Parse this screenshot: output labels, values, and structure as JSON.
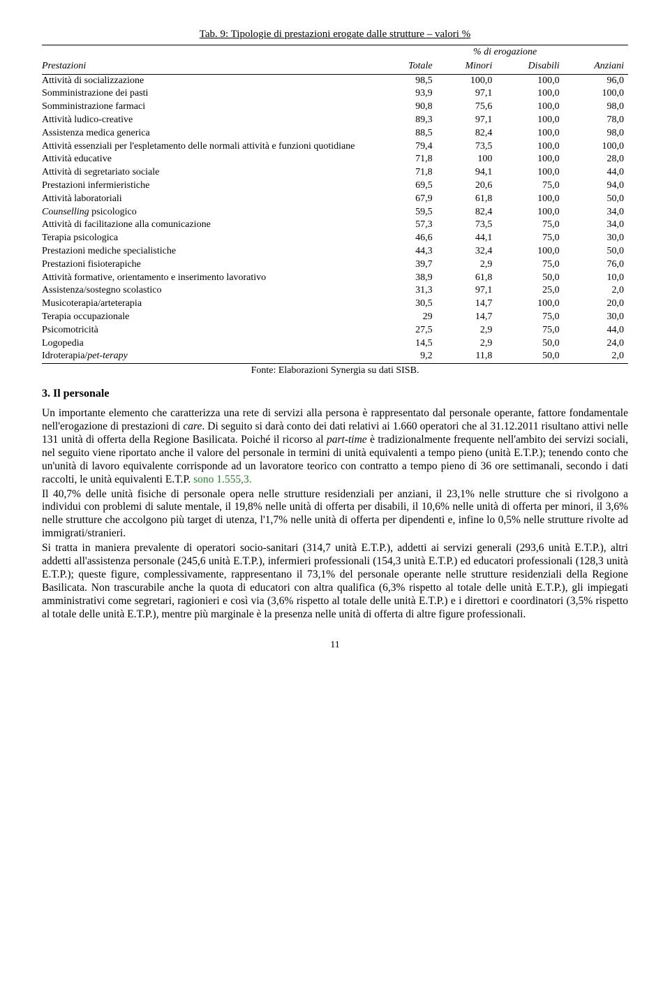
{
  "table": {
    "title": "Tab. 9: Tipologie di prestazioni erogate dalle strutture – valori %",
    "group_header_span": "% di erogazione",
    "columns": {
      "c0": "Prestazioni",
      "c1": "Totale",
      "c2": "Minori",
      "c3": "Disabili",
      "c4": "Anziani"
    },
    "rows": [
      {
        "label": "Attività di socializzazione",
        "c1": "98,5",
        "c2": "100,0",
        "c3": "100,0",
        "c4": "96,0"
      },
      {
        "label": "Somministrazione dei pasti",
        "c1": "93,9",
        "c2": "97,1",
        "c3": "100,0",
        "c4": "100,0"
      },
      {
        "label": "Somministrazione farmaci",
        "c1": "90,8",
        "c2": "75,6",
        "c3": "100,0",
        "c4": "98,0"
      },
      {
        "label": "Attività ludico-creative",
        "c1": "89,3",
        "c2": "97,1",
        "c3": "100,0",
        "c4": "78,0"
      },
      {
        "label": "Assistenza medica generica",
        "c1": "88,5",
        "c2": "82,4",
        "c3": "100,0",
        "c4": "98,0"
      },
      {
        "label": "Attività essenziali per l'espletamento delle normali attività e funzioni quotidiane",
        "c1": "79,4",
        "c2": "73,5",
        "c3": "100,0",
        "c4": "100,0"
      },
      {
        "label": "Attività educative",
        "c1": "71,8",
        "c2": "100",
        "c3": "100,0",
        "c4": "28,0"
      },
      {
        "label": "Attività di segretariato sociale",
        "c1": "71,8",
        "c2": "94,1",
        "c3": "100,0",
        "c4": "44,0"
      },
      {
        "label": "Prestazioni infermieristiche",
        "c1": "69,5",
        "c2": "20,6",
        "c3": "75,0",
        "c4": "94,0"
      },
      {
        "label": "Attività laboratoriali",
        "c1": "67,9",
        "c2": "61,8",
        "c3": "100,0",
        "c4": "50,0"
      },
      {
        "label_html": "<span class='italic-word'>Counselling</span> psicologico",
        "c1": "59,5",
        "c2": "82,4",
        "c3": "100,0",
        "c4": "34,0"
      },
      {
        "label": "Attività di facilitazione alla comunicazione",
        "c1": "57,3",
        "c2": "73,5",
        "c3": "75,0",
        "c4": "34,0"
      },
      {
        "label": "Terapia psicologica",
        "c1": "46,6",
        "c2": "44,1",
        "c3": "75,0",
        "c4": "30,0"
      },
      {
        "label": "Prestazioni mediche specialistiche",
        "c1": "44,3",
        "c2": "32,4",
        "c3": "100,0",
        "c4": "50,0"
      },
      {
        "label": "Prestazioni fisioterapiche",
        "c1": "39,7",
        "c2": "2,9",
        "c3": "75,0",
        "c4": "76,0"
      },
      {
        "label": "Attività formative, orientamento e inserimento lavorativo",
        "c1": "38,9",
        "c2": "61,8",
        "c3": "50,0",
        "c4": "10,0"
      },
      {
        "label": "Assistenza/sostegno scolastico",
        "c1": "31,3",
        "c2": "97,1",
        "c3": "25,0",
        "c4": "2,0"
      },
      {
        "label": "Musicoterapia/arteterapia",
        "c1": "30,5",
        "c2": "14,7",
        "c3": "100,0",
        "c4": "20,0"
      },
      {
        "label": "Terapia occupazionale",
        "c1": "29",
        "c2": "14,7",
        "c3": "75,0",
        "c4": "30,0"
      },
      {
        "label": "Psicomotricità",
        "c1": "27,5",
        "c2": "2,9",
        "c3": "75,0",
        "c4": "44,0"
      },
      {
        "label": "Logopedia",
        "c1": "14,5",
        "c2": "2,9",
        "c3": "50,0",
        "c4": "24,0"
      },
      {
        "label_html": "Idroterapia/<span class='italic-word'>pet-terapy</span>",
        "c1": "9,2",
        "c2": "11,8",
        "c3": "50,0",
        "c4": "2,0"
      }
    ],
    "source": "Fonte: Elaborazioni Synergia su dati SISB."
  },
  "section": {
    "heading": "3. Il personale"
  },
  "body": {
    "p1a": "Un importante elemento che caratterizza una rete di servizi alla persona è rappresentato dal personale operante, fattore fondamentale nell'erogazione di prestazioni di ",
    "p1_italic1": "care",
    "p1b": ". Di seguito si darà conto dei dati relativi ai 1.660 operatori che al 31.12.2011 risultano attivi nelle 131 unità di offerta della Regione Basilicata. Poiché il ricorso al ",
    "p1_italic2": "part-time",
    "p1c": " è tradizionalmente frequente nell'ambito dei servizi sociali, nel seguito viene riportato anche il valore del personale in termini di unità equivalenti a tempo pieno (unità E.T.P.); tenendo conto che un'unità di lavoro equivalente corrisponde ad un lavoratore teorico con contratto a tempo pieno di 36 ore settimanali, secondo i dati raccolti, le unità equivalenti E.T.P. ",
    "p1_green": "sono 1.555,3.",
    "p2": "Il 40,7% delle unità fisiche di personale opera nelle strutture residenziali per anziani, il 23,1% nelle strutture che si rivolgono a individui con problemi di salute mentale, il 19,8% nelle unità di offerta per disabili, il 10,6% nelle unità di offerta per minori, il 3,6% nelle strutture che accolgono più target di utenza, l'1,7% nelle unità di offerta per dipendenti e, infine lo 0,5% nelle strutture rivolte ad immigrati/stranieri.",
    "p3": "Si tratta in maniera prevalente di operatori socio-sanitari (314,7 unità E.T.P.), addetti ai servizi generali (293,6 unità E.T.P.), altri addetti all'assistenza personale (245,6 unità E.T.P.), infermieri professionali (154,3 unità E.T.P.) ed educatori professionali (128,3 unità E.T.P.); queste figure, complessivamente, rappresentano il 73,1% del personale operante nelle strutture residenziali della Regione Basilicata. Non trascurabile anche la quota di educatori con altra qualifica (6,3% rispetto al totale delle unità E.T.P.), gli impiegati amministrativi come segretari, ragionieri e così via (3,6% rispetto al totale delle unità E.T.P.) e i direttori e coordinatori (3,5% rispetto al totale delle unità E.T.P.), mentre più marginale è la presenza nelle unità di offerta di altre figure professionali."
  },
  "page_number": "11"
}
